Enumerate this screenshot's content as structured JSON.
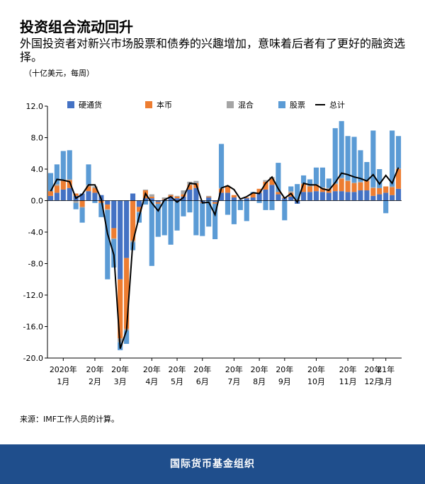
{
  "chart_data": {
    "type": "bar",
    "title": "投资组合流动回升",
    "subtitle": "外国投资者对新兴市场股票和债券的兴趣增加，意味着后者有了更好的融资选择。",
    "unit": "（十亿美元，每周）",
    "source": "来源：IMF工作人员的计算。",
    "footer": "国际货币基金组织",
    "categories": [
      null,
      null,
      "2020年\n1月",
      null,
      null,
      null,
      null,
      "20年\n2月",
      null,
      null,
      null,
      "20年\n3月",
      null,
      null,
      null,
      null,
      "20年\n4月",
      null,
      null,
      null,
      "20年\n5月",
      null,
      null,
      null,
      "20年\n6月",
      null,
      null,
      null,
      null,
      "20年\n7月",
      null,
      null,
      null,
      "20年\n8月",
      null,
      null,
      null,
      "20年\n9月",
      null,
      null,
      null,
      null,
      "20年\n10月",
      null,
      null,
      null,
      null,
      "20年\n11月",
      null,
      null,
      null,
      "20年\n12月",
      null,
      "21年\n1月",
      null,
      null
    ],
    "series": [
      {
        "name": "硬通货",
        "color": "#4472c4",
        "values": [
          0.6,
          1.0,
          1.4,
          1.6,
          0.6,
          0.9,
          1.2,
          1.0,
          0.7,
          -0.5,
          -3.5,
          -10,
          -7.3,
          0.9,
          -0.8,
          0.3,
          0.3,
          -0.2,
          0.1,
          0.5,
          0.3,
          0.5,
          1.4,
          1.6,
          -0.2,
          0.4,
          -0.2,
          1.0,
          1.0,
          0.4,
          0.1,
          0.3,
          0.4,
          1.0,
          1.4,
          2.0,
          0.8,
          0.3,
          0.5,
          -0.4,
          1.1,
          1.1,
          1.2,
          1.1,
          1.0,
          1.2,
          1.2,
          1.1,
          1.1,
          1.3,
          1.3,
          0.6,
          0.8,
          1.0,
          0.7,
          1.5
        ]
      },
      {
        "name": "本币",
        "color": "#ed7d31",
        "values": [
          0.6,
          0.9,
          1.1,
          1.0,
          0.3,
          -0.8,
          0.6,
          0.6,
          -0.3,
          -0.6,
          -1.3,
          -7.5,
          -9.0,
          -5.1,
          -0.6,
          1.0,
          0.2,
          -0.2,
          0.1,
          0.2,
          0.2,
          0.3,
          0.6,
          0.6,
          -0.1,
          0.1,
          -0.2,
          0.5,
          0.8,
          0.3,
          0,
          0.1,
          0.5,
          0.5,
          1.0,
          0.8,
          0.3,
          0.1,
          0.5,
          0.1,
          1.0,
          0.7,
          0.8,
          0.5,
          0.5,
          0.9,
          1.6,
          1.4,
          1.1,
          1.0,
          1.2,
          1.0,
          0.8,
          0.8,
          1.0,
          2.5
        ]
      },
      {
        "name": "混合",
        "color": "#a5a5a5",
        "values": [
          0,
          0.2,
          0.2,
          0.1,
          -0.3,
          -0.1,
          0.2,
          0.2,
          0,
          -0.1,
          -0.1,
          -0.5,
          -0.2,
          -0.2,
          -0.1,
          0.1,
          0.3,
          0,
          0.2,
          0.1,
          0.1,
          0.5,
          0.4,
          0.3,
          0,
          0.1,
          0,
          0.1,
          0.1,
          0,
          0,
          0,
          0,
          0,
          0.2,
          0.2,
          0,
          0,
          0.2,
          0,
          0.1,
          0.1,
          0.1,
          0.1,
          0.1,
          0.1,
          0.1,
          0.1,
          0.1,
          0.1,
          0.1,
          0.1,
          0,
          0,
          0.1,
          0.1
        ]
      },
      {
        "name": "股票",
        "color": "#5b9bd5",
        "values": [
          2.3,
          2.5,
          3.6,
          3.7,
          -0.8,
          -1.9,
          2.6,
          -0.3,
          -1.8,
          -8.8,
          -3.6,
          -1.0,
          -1.7,
          -1.0,
          -1.3,
          -0.5,
          -8.3,
          -4.2,
          -4.4,
          -5.6,
          -3.8,
          -2.0,
          -1.5,
          -4.4,
          -4.2,
          -3.3,
          -4.5,
          5.6,
          -1.8,
          -3.0,
          -1.2,
          -2.6,
          0.2,
          -0.3,
          -1.2,
          -1.2,
          3.7,
          -2.5,
          0.6,
          2.0,
          1.0,
          0.8,
          2.1,
          2.5,
          1.2,
          7.0,
          7.2,
          5.6,
          5.8,
          4.0,
          2.3,
          7.2,
          2.4,
          -1.6,
          7.1,
          4.1
        ]
      },
      {
        "name": "总计",
        "color": "#000000",
        "type": "line",
        "values": [
          1.2,
          2.7,
          2.6,
          2.4,
          0.3,
          0.8,
          2.0,
          2.0,
          0.2,
          -4.2,
          -6.9,
          -18.8,
          -16.5,
          -5.3,
          -2.0,
          0.9,
          -0.3,
          -1.3,
          0.1,
          0.5,
          -0.2,
          0.4,
          2.2,
          2.1,
          -0.3,
          -0.2,
          -1.8,
          1.6,
          1.9,
          1.4,
          0.2,
          0.5,
          1.0,
          0.9,
          2.2,
          3.0,
          1.5,
          0.3,
          0.9,
          -0.2,
          2.2,
          2.0,
          2.0,
          1.5,
          1.3,
          2.3,
          3.5,
          3.3,
          3.0,
          2.8,
          2.5,
          3.3,
          2.1,
          3.2,
          2.2,
          4.2
        ]
      }
    ],
    "ylim": [
      -20,
      12
    ],
    "yticks": [
      {
        "value": 12,
        "label": "12.0"
      },
      {
        "value": 8,
        "label": "8.0"
      },
      {
        "value": 4,
        "label": "4.0"
      },
      {
        "value": 0,
        "label": "0.0"
      },
      {
        "value": -4,
        "label": "-4.0"
      },
      {
        "value": -8,
        "label": "-8.0"
      },
      {
        "value": -12,
        "label": "-12.0"
      },
      {
        "value": -16,
        "label": "-16.0"
      },
      {
        "value": -20,
        "label": "-20.0"
      }
    ],
    "grid": false
  }
}
